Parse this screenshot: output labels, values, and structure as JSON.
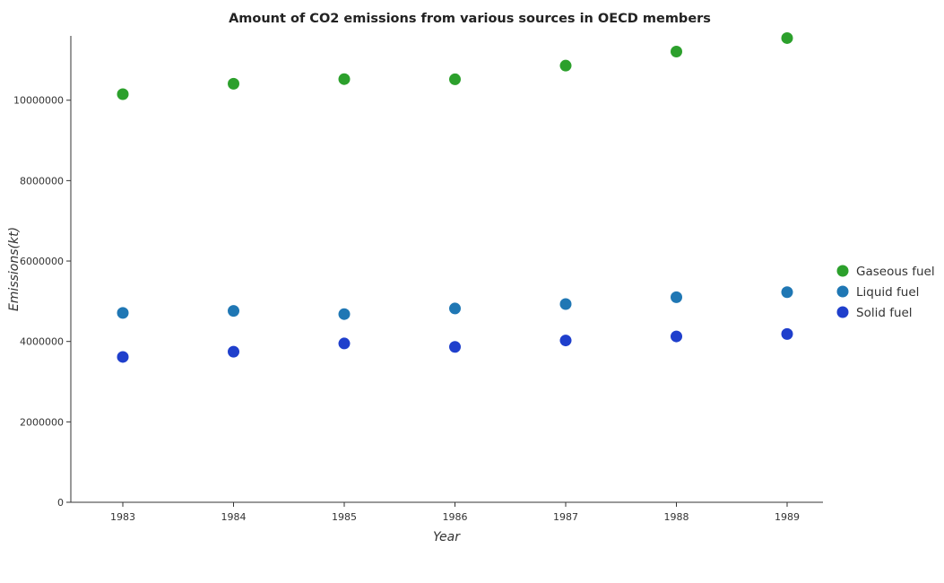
{
  "chart_data": {
    "type": "scatter",
    "title": "Amount of CO2 emissions from various sources in OECD members",
    "xlabel": "Year",
    "ylabel": "Emissions(kt)",
    "categories": [
      "1983",
      "1984",
      "1985",
      "1986",
      "1987",
      "1988",
      "1989"
    ],
    "ylim": [
      0,
      11600000
    ],
    "yticks": [
      0,
      2000000,
      4000000,
      6000000,
      8000000,
      10000000
    ],
    "ytick_labels": [
      "0",
      "2000000",
      "4000000",
      "6000000",
      "8000000",
      "10000000"
    ],
    "legend_position": "right",
    "grid": false,
    "series": [
      {
        "name": "Gaseous fuel",
        "color": "#2ca02c",
        "values": [
          10150000,
          10410000,
          10525000,
          10520000,
          10860000,
          11210000,
          11545000
        ]
      },
      {
        "name": "Liquid fuel",
        "color": "#1f77b4",
        "values": [
          4710000,
          4760000,
          4680000,
          4820000,
          4930000,
          5100000,
          5225000
        ]
      },
      {
        "name": "Solid fuel",
        "color": "#1f3fcc",
        "values": [
          3615000,
          3745000,
          3950000,
          3865000,
          4025000,
          4125000,
          4185000
        ]
      }
    ]
  }
}
